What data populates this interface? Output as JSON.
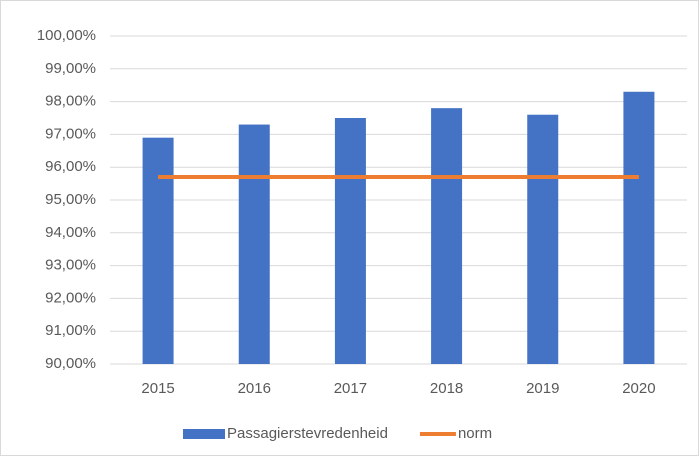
{
  "chart_data": {
    "type": "bar",
    "categories": [
      "2015",
      "2016",
      "2017",
      "2018",
      "2019",
      "2020"
    ],
    "series": [
      {
        "name": "Passagierstevredenheid",
        "color": "#4472c4",
        "type": "bar",
        "values": [
          96.9,
          97.3,
          97.5,
          97.8,
          97.6,
          98.3
        ]
      },
      {
        "name": "norm",
        "color": "#ed7d31",
        "type": "line",
        "values": [
          95.7,
          95.7,
          95.7,
          95.7,
          95.7,
          95.7
        ]
      }
    ],
    "ylim": [
      90,
      100
    ],
    "yticks": [
      {
        "value": 90,
        "label": "90,00%"
      },
      {
        "value": 91,
        "label": "91,00%"
      },
      {
        "value": 92,
        "label": "92,00%"
      },
      {
        "value": 93,
        "label": "93,00%"
      },
      {
        "value": 94,
        "label": "94,00%"
      },
      {
        "value": 95,
        "label": "95,00%"
      },
      {
        "value": 96,
        "label": "96,00%"
      },
      {
        "value": 97,
        "label": "97,00%"
      },
      {
        "value": 98,
        "label": "98,00%"
      },
      {
        "value": 99,
        "label": "99,00%"
      },
      {
        "value": 100,
        "label": "100,00%"
      }
    ],
    "grid": true,
    "legend": "bottom"
  }
}
